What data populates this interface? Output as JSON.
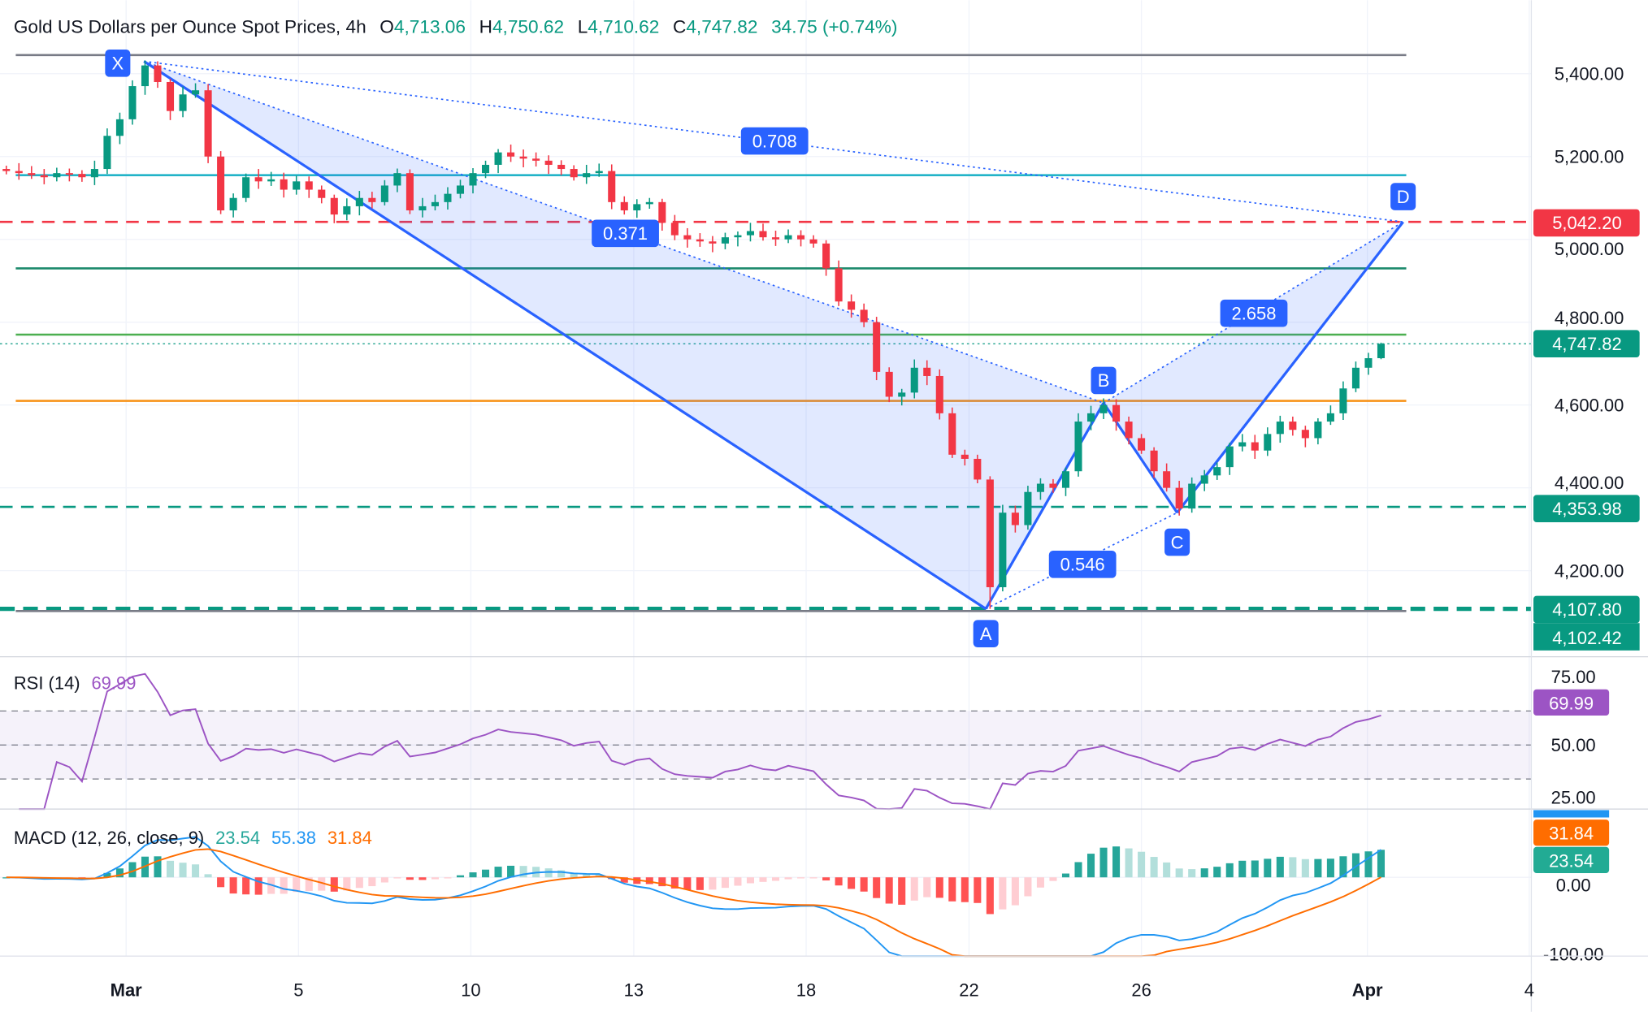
{
  "header": {
    "title": "Gold US Dollars per Ounce Spot Prices, 4h",
    "o_label": "O",
    "o": "4,713.06",
    "h_label": "H",
    "h": "4,750.62",
    "l_label": "L",
    "l": "4,710.62",
    "c_label": "C",
    "c": "4,747.82",
    "change": "34.75 (+0.74%)"
  },
  "rsi": {
    "label": "RSI (14)",
    "value": "69.99",
    "ticks": [
      "75.00",
      "50.00",
      "25.00"
    ],
    "tag": "69.99"
  },
  "macd": {
    "label": "MACD (12, 26, close, 9)",
    "hist": "23.54",
    "macd": "55.38",
    "signal": "31.84",
    "ticks": [
      "0.00",
      "-100.00"
    ],
    "tag_signal": "31.84",
    "tag_hist": "23.54"
  },
  "price_ticks": [
    "5,400.00",
    "5,200.00",
    "5,000.00",
    "4,800.00",
    "4,600.00",
    "4,400.00",
    "4,200.00"
  ],
  "price_tags": [
    {
      "text": "5,042.20",
      "color": "#f23645"
    },
    {
      "text": "4,747.82",
      "color": "#089981"
    },
    {
      "text": "4,353.98",
      "color": "#089981"
    },
    {
      "text": "4,107.80",
      "color": "#089981"
    },
    {
      "text": "4,102.42",
      "color": "#089981"
    }
  ],
  "x_ticks": [
    "Mar",
    "5",
    "10",
    "13",
    "18",
    "22",
    "26",
    "Apr",
    "4"
  ],
  "pattern": {
    "points": {
      "X": 5430,
      "A": 4107.8,
      "B": 4605,
      "C": 4340,
      "D": 5042.2
    },
    "ratios": {
      "xb": "0.371",
      "xd": "0.708",
      "bd": "2.658",
      "ac": "0.546"
    },
    "color": "#2962ff"
  },
  "chart_data": {
    "type": "candlestick",
    "title": "Gold US Dollars per Ounce Spot Prices, 4h",
    "ylim": [
      4030,
      5500
    ],
    "levels": [
      {
        "price": 5445,
        "color": "#787b86",
        "style": "solid"
      },
      {
        "price": 5155,
        "color": "#22b3c8",
        "style": "solid"
      },
      {
        "price": 5042.2,
        "color": "#f23645",
        "style": "dashed"
      },
      {
        "price": 4930,
        "color": "#1b8a6b",
        "style": "solid"
      },
      {
        "price": 4770,
        "color": "#4caf50",
        "style": "solid"
      },
      {
        "price": 4610,
        "color": "#f7931a",
        "style": "solid"
      },
      {
        "price": 4353.98,
        "color": "#089981",
        "style": "dashed"
      },
      {
        "price": 4107.8,
        "color": "#089981",
        "style": "dashed-thick"
      },
      {
        "price": 4102.42,
        "color": "#787b86",
        "style": "solid"
      }
    ],
    "closes": [
      5165,
      5160,
      5155,
      5150,
      5160,
      5158,
      5150,
      5170,
      5250,
      5290,
      5370,
      5420,
      5380,
      5310,
      5350,
      5360,
      5200,
      5070,
      5100,
      5150,
      5140,
      5145,
      5120,
      5140,
      5120,
      5100,
      5060,
      5080,
      5100,
      5090,
      5130,
      5160,
      5070,
      5080,
      5090,
      5110,
      5130,
      5160,
      5180,
      5210,
      5200,
      5195,
      5190,
      5180,
      5170,
      5150,
      5160,
      5165,
      5090,
      5070,
      5085,
      5090,
      5040,
      5010,
      5000,
      4995,
      4990,
      5005,
      5010,
      5020,
      5005,
      5000,
      5010,
      5000,
      4990,
      4930,
      4850,
      4830,
      4800,
      4680,
      4620,
      4630,
      4690,
      4670,
      4580,
      4480,
      4470,
      4420,
      4160,
      4340,
      4310,
      4390,
      4410,
      4400,
      4440,
      4560,
      4580,
      4600,
      4560,
      4520,
      4490,
      4440,
      4400,
      4350,
      4410,
      4430,
      4450,
      4500,
      4510,
      4490,
      4530,
      4560,
      4540,
      4520,
      4560,
      4580,
      4640,
      4690,
      4713.06,
      4747.82
    ],
    "last_candle": {
      "open": 4713.06,
      "high": 4750.62,
      "low": 4710.62,
      "close": 4747.82
    },
    "up_color": "#089981",
    "down_color": "#f23645"
  }
}
